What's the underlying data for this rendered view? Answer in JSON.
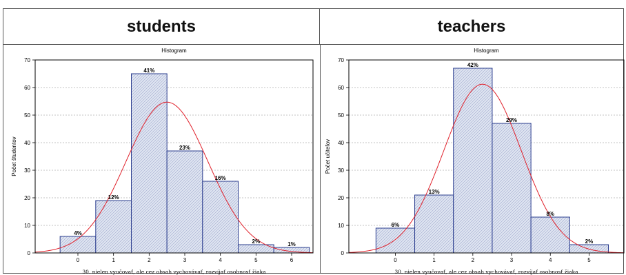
{
  "headers": {
    "left": "students",
    "right": "teachers"
  },
  "chart_data": [
    {
      "type": "bar",
      "title": "Histogram",
      "xlabel": "30.  nielen vyučovať, ale cez obsah vychovávať, rozvíjať osobnosť žiaka",
      "ylabel": "Počet študentov",
      "categories": [
        "0",
        "1",
        "2",
        "3",
        "4",
        "5",
        "6"
      ],
      "values": [
        6,
        19,
        65,
        37,
        26,
        3,
        2
      ],
      "data_labels": [
        "4%",
        "12%",
        "41%",
        "23%",
        "16%",
        "2%",
        "1%"
      ],
      "ylim": [
        0,
        70
      ],
      "yticks": [
        0,
        10,
        20,
        30,
        40,
        50,
        60,
        70
      ],
      "xlim": [
        -1.2,
        6.6
      ],
      "grid": true,
      "normal_curve": {
        "mean": 2.5,
        "sd": 1.15,
        "peak": 54.7
      },
      "colors": {
        "bar_fill": "#dde3f0",
        "bar_edge": "#2a3c8e",
        "curve": "#e0202a"
      }
    },
    {
      "type": "bar",
      "title": "Histogram",
      "xlabel": "30.  nielen vyučovať, ale cez obsah vychovávať, rozvíjať osobnosť žiaka",
      "ylabel": "Počet učiteľov",
      "categories": [
        "0",
        "1",
        "2",
        "3",
        "4",
        "5"
      ],
      "values": [
        9,
        21,
        67,
        47,
        13,
        3
      ],
      "data_labels": [
        "6%",
        "13%",
        "42%",
        "29%",
        "8%",
        "2%"
      ],
      "ylim": [
        0,
        70
      ],
      "yticks": [
        0,
        10,
        20,
        30,
        40,
        50,
        60,
        70
      ],
      "xlim": [
        -1.2,
        5.9
      ],
      "grid": true,
      "normal_curve": {
        "mean": 2.25,
        "sd": 1.0,
        "peak": 61.2
      },
      "colors": {
        "bar_fill": "#dde3f0",
        "bar_edge": "#2a3c8e",
        "curve": "#e0202a"
      }
    }
  ]
}
